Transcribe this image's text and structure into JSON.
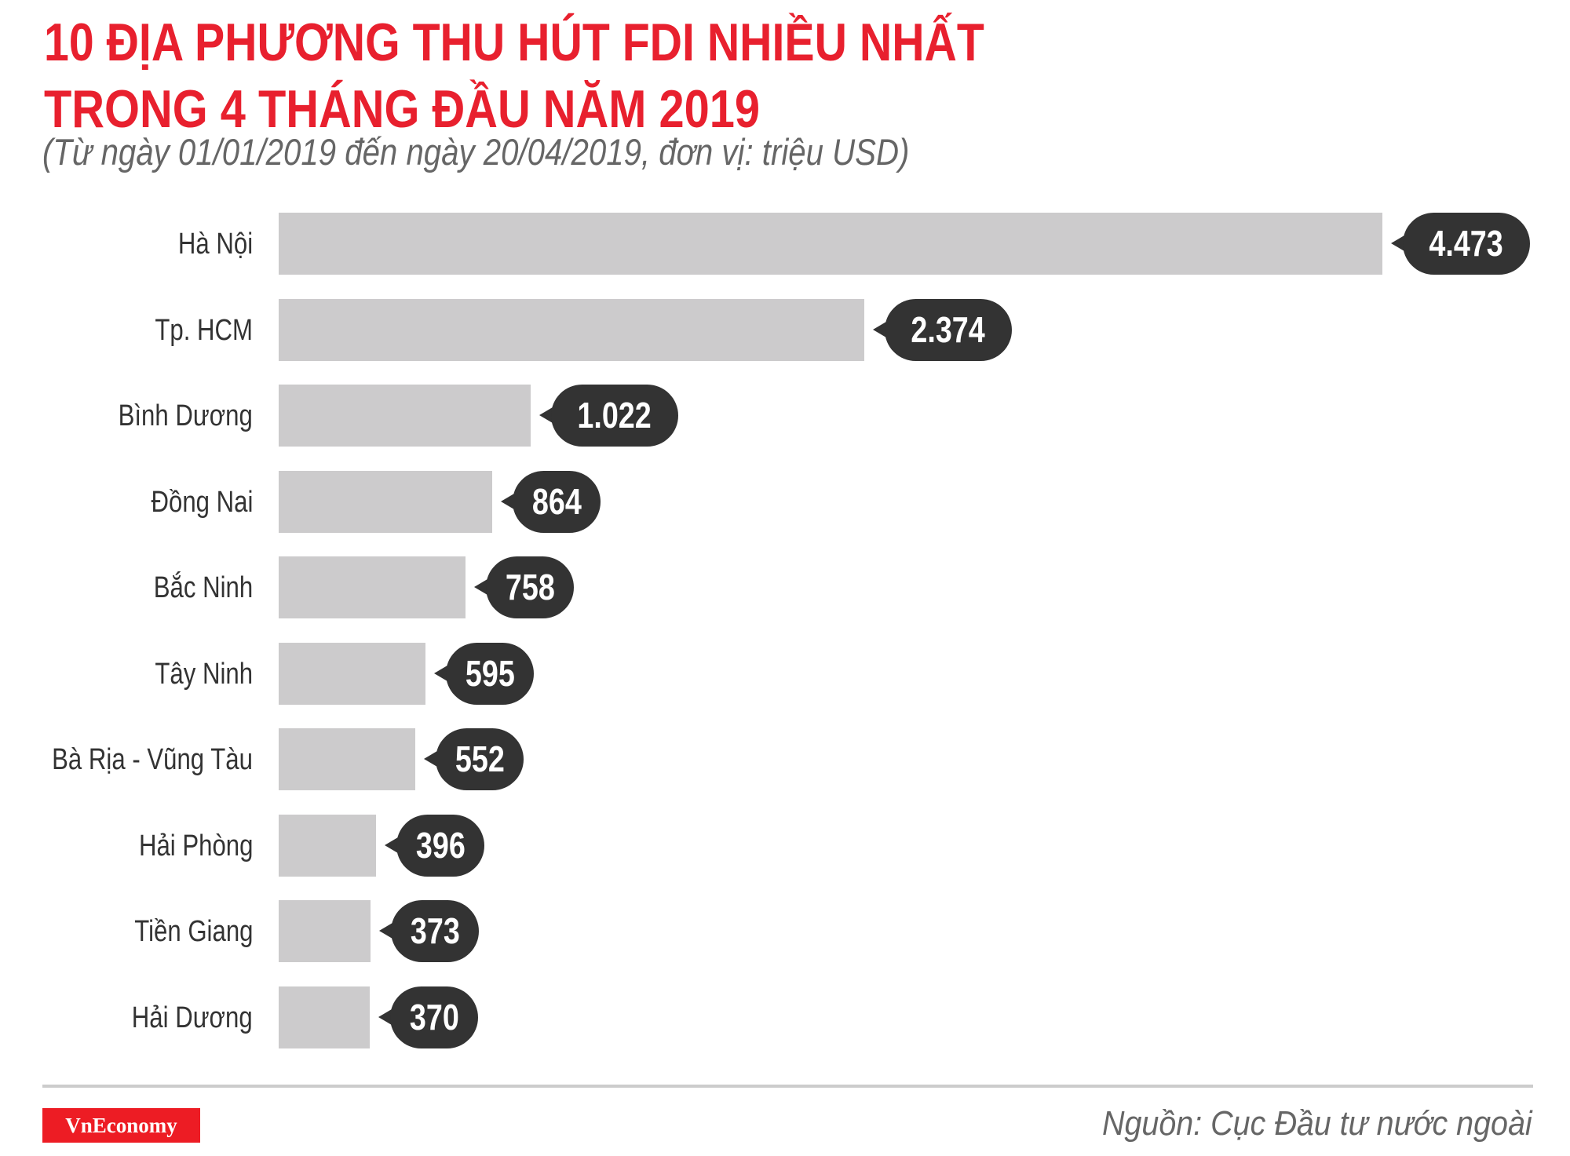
{
  "header": {
    "title_line1": "10 ĐỊA PHƯƠNG THU HÚT FDI NHIỀU NHẤT",
    "title_line2": "TRONG 4 THÁNG ĐẦU NĂM 2019",
    "subtitle": "(Từ ngày 01/01/2019 đến ngày 20/04/2019, đơn vị: triệu USD)"
  },
  "footer": {
    "logo": "VnEconomy",
    "source": "Nguồn: Cục Đầu tư nước ngoài"
  },
  "colors": {
    "title": "#e8202e",
    "bar": "#cccbcc",
    "bubble": "#333333",
    "logo_bg": "#ed1c24",
    "subtitle": "#666666"
  },
  "chart_data": {
    "type": "bar",
    "orientation": "horizontal",
    "title": "10 ĐỊA PHƯƠNG THU HÚT FDI NHIỀU NHẤT TRONG 4 THÁNG ĐẦU NĂM 2019",
    "subtitle": "(Từ ngày 01/01/2019 đến ngày 20/04/2019, đơn vị: triệu USD)",
    "xlabel": "",
    "ylabel": "",
    "unit": "triệu USD",
    "categories": [
      "Hà Nội",
      "Tp. HCM",
      "Bình Dương",
      "Đồng Nai",
      "Bắc Ninh",
      "Tây Ninh",
      "Bà Rịa - Vũng Tàu",
      "Hải Phòng",
      "Tiền Giang",
      "Hải Dương"
    ],
    "values": [
      4473,
      2374,
      1022,
      864,
      758,
      595,
      552,
      396,
      373,
      370
    ],
    "value_labels": [
      "4.473",
      "2.374",
      "1.022",
      "864",
      "758",
      "595",
      "552",
      "396",
      "373",
      "370"
    ],
    "grid": false,
    "legend": "none",
    "source": "Nguồn: Cục Đầu tư nước ngoài"
  }
}
